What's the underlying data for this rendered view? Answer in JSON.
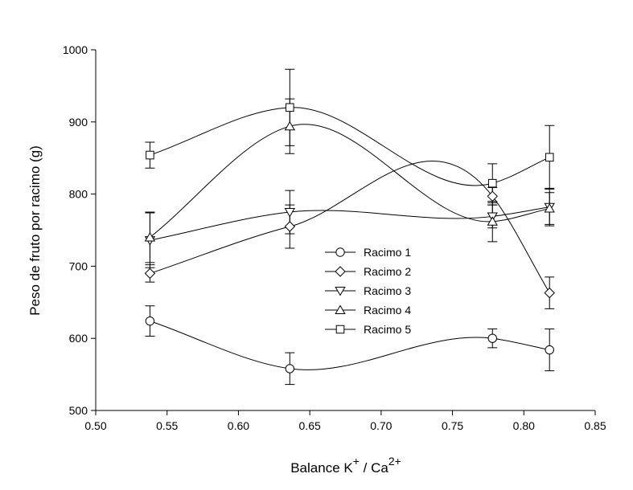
{
  "chart_data": {
    "type": "line",
    "xlabel": "Balance K",
    "xlabel_sup1": "+",
    "xlabel_mid": " / Ca",
    "xlabel_sup2": "2+",
    "ylabel": "Peso de fruto por racimo (g)",
    "xlim": [
      0.5,
      0.85
    ],
    "ylim": [
      500,
      1000
    ],
    "x_ticks": [
      "0.50",
      "0.55",
      "0.60",
      "0.65",
      "0.70",
      "0.75",
      "0.80",
      "0.85"
    ],
    "y_ticks": [
      "500",
      "600",
      "700",
      "800",
      "900",
      "1000"
    ],
    "grid": false,
    "legend_position": "center",
    "x": [
      0.538,
      0.636,
      0.778,
      0.818
    ],
    "series": [
      {
        "name": "Racimo 1",
        "marker": "circle",
        "values": [
          624,
          558,
          600,
          584
        ],
        "err": [
          21,
          22,
          13,
          29
        ]
      },
      {
        "name": "Racimo 2",
        "marker": "diamond",
        "values": [
          690,
          755,
          797,
          663
        ],
        "err": [
          12,
          30,
          12,
          22
        ]
      },
      {
        "name": "Racimo 3",
        "marker": "triangle-down",
        "values": [
          736,
          775,
          769,
          782
        ],
        "err": [
          38,
          30,
          16,
          26
        ]
      },
      {
        "name": "Racimo 4",
        "marker": "triangle-up",
        "values": [
          740,
          894,
          762,
          780
        ],
        "err": [
          35,
          38,
          28,
          22
        ]
      },
      {
        "name": "Racimo 5",
        "marker": "square",
        "values": [
          854,
          920,
          815,
          851
        ],
        "err": [
          18,
          53,
          27,
          44
        ]
      }
    ]
  }
}
